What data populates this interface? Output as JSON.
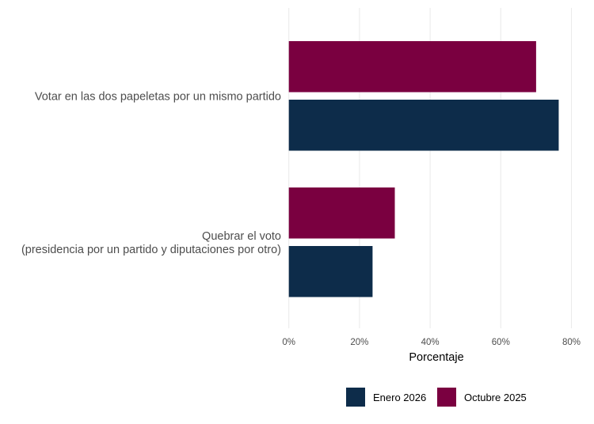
{
  "chart_data": {
    "type": "bar",
    "orientation": "horizontal",
    "categories": [
      [
        "Votar en las dos papeletas por un mismo partido"
      ],
      [
        "Quebrar el voto",
        "(presidencia por un partido y diputaciones por otro)"
      ]
    ],
    "series": [
      {
        "name": "Octubre 2025",
        "color": "#7a0040",
        "values": [
          70.0,
          30.0
        ]
      },
      {
        "name": "Enero 2026",
        "color": "#0d2c4a",
        "values": [
          76.4,
          23.7
        ]
      }
    ],
    "xlabel": "Porcentaje",
    "ylabel": "",
    "xlim": [
      0,
      83
    ],
    "xticks": [
      0,
      20,
      40,
      60,
      80
    ],
    "xtick_labels": [
      "0%",
      "20%",
      "40%",
      "60%",
      "80%"
    ],
    "grid": "vertical",
    "legend": {
      "placement": "bottom",
      "order": [
        "Enero 2026",
        "Octubre 2025"
      ]
    }
  }
}
